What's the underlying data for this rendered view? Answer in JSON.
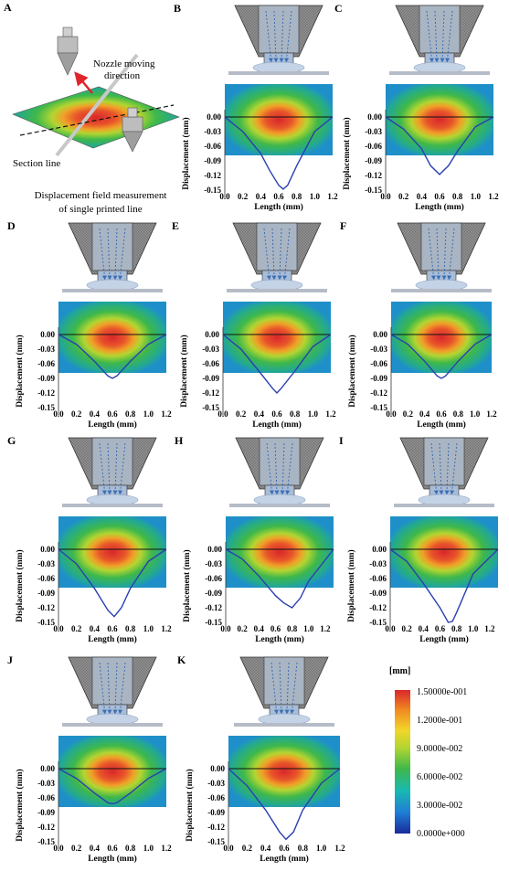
{
  "panel_a": {
    "label": "A",
    "annotation_direction": [
      "Nozzle moving",
      "direction"
    ],
    "annotation_section": "Section line",
    "caption": [
      "Displacement field measurement",
      "of single printed line"
    ]
  },
  "axes": {
    "ylabel": "Displacement (mm)",
    "xlabel": "Length (mm)",
    "yticks": [
      "0.00",
      "-0.03",
      "-0.06",
      "-0.09",
      "-0.12",
      "-0.15"
    ]
  },
  "colorbar": {
    "unit": "[mm]",
    "ticks": [
      "1.50000e-001",
      "1.2000e-001",
      "9.0000e-002",
      "6.0000e-002",
      "3.0000e-002",
      "0.0000e+000"
    ],
    "colors": [
      "#1a2a9a",
      "#1f7fd6",
      "#19b9b1",
      "#3fb84a",
      "#b3d531",
      "#f2d52a",
      "#f18a21",
      "#d9262c"
    ]
  },
  "chart_data": [
    {
      "panel": "B",
      "type": "line",
      "xlabel": "Length (mm)",
      "ylabel": "Displacement (mm)",
      "xlim": [
        0,
        1.2
      ],
      "ylim": [
        -0.15,
        0
      ],
      "xticks": [
        "0.0",
        "0.2",
        "0.4",
        "0.6",
        "0.8",
        "1.0",
        "1.2"
      ],
      "x": [
        0,
        0.2,
        0.4,
        0.5,
        0.6,
        0.65,
        0.7,
        0.8,
        1.0,
        1.2
      ],
      "y": [
        0,
        -0.03,
        -0.075,
        -0.11,
        -0.14,
        -0.148,
        -0.14,
        -0.1,
        -0.03,
        0
      ]
    },
    {
      "panel": "C",
      "type": "line",
      "xlabel": "Length (mm)",
      "ylabel": "Displacement (mm)",
      "xlim": [
        0,
        1.2
      ],
      "ylim": [
        -0.15,
        0
      ],
      "xticks": [
        "0.0",
        "0.2",
        "0.4",
        "0.6",
        "0.8",
        "1.0",
        "1.2"
      ],
      "x": [
        0,
        0.2,
        0.4,
        0.5,
        0.6,
        0.7,
        0.8,
        1.0,
        1.2
      ],
      "y": [
        0,
        -0.025,
        -0.065,
        -0.1,
        -0.118,
        -0.1,
        -0.07,
        -0.02,
        0
      ]
    },
    {
      "panel": "D",
      "type": "line",
      "xlabel": "Length (mm)",
      "ylabel": "Displacement (mm)",
      "xlim": [
        0,
        1.2
      ],
      "ylim": [
        -0.15,
        0
      ],
      "xticks": [
        "0.0",
        "0.2",
        "0.4",
        "0.6",
        "0.8",
        "1.0",
        "1.2"
      ],
      "x": [
        0,
        0.2,
        0.4,
        0.55,
        0.6,
        0.65,
        0.8,
        1.0,
        1.2
      ],
      "y": [
        0,
        -0.02,
        -0.055,
        -0.085,
        -0.09,
        -0.085,
        -0.055,
        -0.02,
        0
      ]
    },
    {
      "panel": "E",
      "type": "line",
      "xlabel": "Length (mm)",
      "ylabel": "Displacement (mm)",
      "xlim": [
        0,
        1.2
      ],
      "ylim": [
        -0.15,
        0
      ],
      "xticks": [
        "0.0",
        "0.2",
        "0.4",
        "0.6",
        "0.8",
        "1.0",
        "1.2"
      ],
      "x": [
        0,
        0.2,
        0.4,
        0.55,
        0.6,
        0.65,
        0.8,
        1.0,
        1.2
      ],
      "y": [
        0,
        -0.03,
        -0.075,
        -0.11,
        -0.12,
        -0.11,
        -0.075,
        -0.025,
        0
      ]
    },
    {
      "panel": "F",
      "type": "line",
      "xlabel": "Length (mm)",
      "ylabel": "Displacement (mm)",
      "xlim": [
        0,
        1.2
      ],
      "ylim": [
        -0.15,
        0
      ],
      "xticks": [
        "0.0",
        "0.2",
        "0.4",
        "0.6",
        "0.8",
        "1.0",
        "1.2"
      ],
      "x": [
        0,
        0.2,
        0.4,
        0.55,
        0.6,
        0.65,
        0.8,
        1.0,
        1.2
      ],
      "y": [
        0,
        -0.02,
        -0.055,
        -0.085,
        -0.09,
        -0.085,
        -0.055,
        -0.02,
        0
      ]
    },
    {
      "panel": "G",
      "type": "line",
      "xlabel": "Length (mm)",
      "ylabel": "Displacement (mm)",
      "xlim": [
        0,
        1.2
      ],
      "ylim": [
        -0.15,
        0
      ],
      "xticks": [
        "0.0",
        "0.2",
        "0.4",
        "0.6",
        "0.8",
        "1.0",
        "1.2"
      ],
      "x": [
        0,
        0.2,
        0.4,
        0.55,
        0.62,
        0.7,
        0.8,
        1.0,
        1.2
      ],
      "y": [
        0,
        -0.03,
        -0.08,
        -0.125,
        -0.138,
        -0.12,
        -0.08,
        -0.025,
        0
      ]
    },
    {
      "panel": "H",
      "type": "line",
      "xlabel": "Length (mm)",
      "ylabel": "Displacement (mm)",
      "xlim": [
        0,
        1.3
      ],
      "ylim": [
        -0.15,
        0
      ],
      "xticks": [
        "0.0",
        "0.2",
        "0.4",
        "0.6",
        "0.8",
        "1.0",
        "1.2"
      ],
      "x": [
        0,
        0.2,
        0.4,
        0.6,
        0.7,
        0.8,
        0.9,
        1.0,
        1.3
      ],
      "y": [
        0,
        -0.02,
        -0.055,
        -0.095,
        -0.11,
        -0.12,
        -0.1,
        -0.065,
        0
      ]
    },
    {
      "panel": "I",
      "type": "line",
      "xlabel": "Length (mm)",
      "ylabel": "Displacement (mm)",
      "xlim": [
        0,
        1.3
      ],
      "ylim": [
        -0.15,
        0
      ],
      "xticks": [
        "0.0",
        "0.2",
        "0.4",
        "0.6",
        "0.8",
        "1.0",
        "1.2"
      ],
      "x": [
        0,
        0.2,
        0.4,
        0.6,
        0.7,
        0.75,
        0.8,
        1.0,
        1.3
      ],
      "y": [
        0,
        -0.025,
        -0.07,
        -0.12,
        -0.15,
        -0.148,
        -0.13,
        -0.05,
        0
      ]
    },
    {
      "panel": "J",
      "type": "line",
      "xlabel": "Length (mm)",
      "ylabel": "Displacement (mm)",
      "xlim": [
        0,
        1.2
      ],
      "ylim": [
        -0.15,
        0
      ],
      "xticks": [
        "0.0",
        "0.2",
        "0.4",
        "0.6",
        "0.8",
        "1.0",
        "1.2"
      ],
      "x": [
        0,
        0.2,
        0.4,
        0.55,
        0.6,
        0.65,
        0.8,
        1.0,
        1.2
      ],
      "y": [
        0,
        -0.02,
        -0.05,
        -0.07,
        -0.072,
        -0.07,
        -0.05,
        -0.02,
        0
      ]
    },
    {
      "panel": "K",
      "type": "line",
      "xlabel": "Length (mm)",
      "ylabel": "Displacement (mm)",
      "xlim": [
        0,
        1.2
      ],
      "ylim": [
        -0.15,
        0
      ],
      "xticks": [
        "0.0",
        "0.2",
        "0.4",
        "0.6",
        "0.8",
        "1.0",
        "1.2"
      ],
      "x": [
        0,
        0.2,
        0.4,
        0.55,
        0.62,
        0.7,
        0.8,
        1.0,
        1.2
      ],
      "y": [
        0,
        -0.035,
        -0.085,
        -0.13,
        -0.145,
        -0.13,
        -0.085,
        -0.03,
        0
      ]
    }
  ]
}
